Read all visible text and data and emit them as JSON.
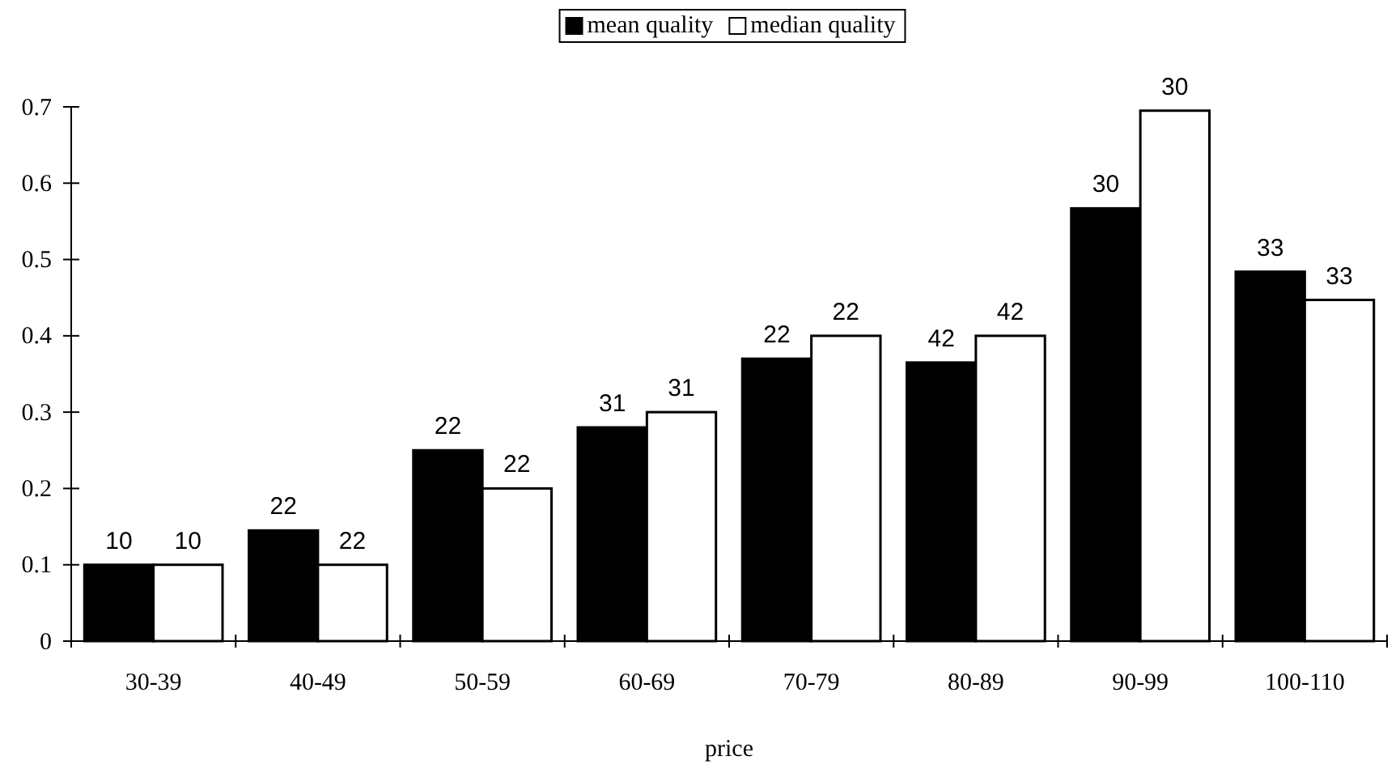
{
  "chart_data": {
    "type": "bar",
    "xlabel": "price",
    "categories": [
      "30-39",
      "40-49",
      "50-59",
      "60-69",
      "70-79",
      "80-89",
      "90-99",
      "100-110"
    ],
    "series": [
      {
        "name": "mean quality",
        "color": "#000000",
        "values": [
          0.1,
          0.145,
          0.25,
          0.28,
          0.37,
          0.365,
          0.567,
          0.484
        ]
      },
      {
        "name": "median quality",
        "color": "#ffffff",
        "values": [
          0.1,
          0.1,
          0.2,
          0.3,
          0.4,
          0.4,
          0.695,
          0.447
        ]
      }
    ],
    "annotations": [
      {
        "text": "10",
        "x": "30-39",
        "y": 0.1
      },
      {
        "text": "10",
        "x": "30-39",
        "y": 0.1
      },
      {
        "text": "22",
        "x": "40-49",
        "y": 0.145
      },
      {
        "text": "22",
        "x": "40-49",
        "y": 0.1
      },
      {
        "text": "22",
        "x": "50-59",
        "y": 0.25
      },
      {
        "text": "22",
        "x": "50-59",
        "y": 0.2
      },
      {
        "text": "31",
        "x": "60-69",
        "y": 0.28
      },
      {
        "text": "31",
        "x": "60-69",
        "y": 0.3
      },
      {
        "text": "22",
        "x": "70-79",
        "y": 0.37
      },
      {
        "text": "22",
        "x": "70-79",
        "y": 0.4
      },
      {
        "text": "42",
        "x": "80-89",
        "y": 0.365
      },
      {
        "text": "42",
        "x": "80-89",
        "y": 0.4
      },
      {
        "text": "30",
        "x": "90-99",
        "y": 0.567
      },
      {
        "text": "30",
        "x": "90-99",
        "y": 0.695
      },
      {
        "text": "33",
        "x": "100-110",
        "y": 0.484
      },
      {
        "text": "33",
        "x": "100-110",
        "y": 0.447
      }
    ],
    "ylim": [
      0,
      0.7
    ],
    "yticks": [
      0,
      0.1,
      0.2,
      0.3,
      0.4,
      0.5,
      0.6,
      0.7
    ],
    "grid": false,
    "legend": "top"
  }
}
